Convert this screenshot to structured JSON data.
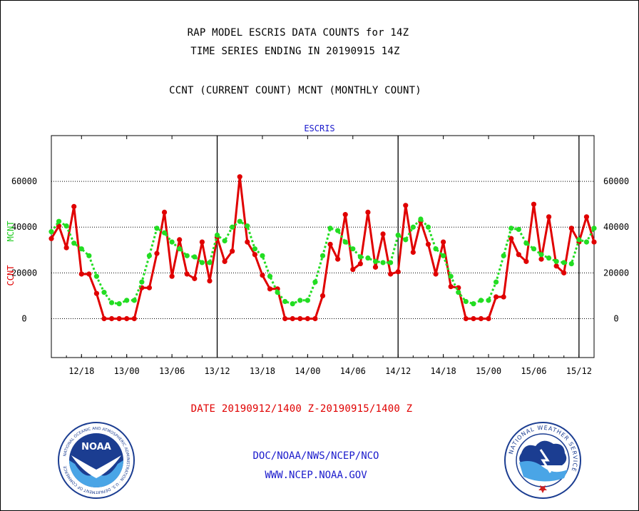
{
  "header": {
    "title_line1": "RAP MODEL ESCRIS DATA COUNTS for 14Z",
    "title_line2": "TIME SERIES ENDING IN 20190915 14Z",
    "title_line3": "CCNT (CURRENT COUNT) MCNT (MONTHLY COUNT)"
  },
  "footer": {
    "date_range": "DATE 20190912/1400 Z-20190915/1400 Z",
    "credit_line1": "DOC/NOAA/NWS/NCEP/NCO",
    "credit_line2": "WWW.NCEP.NOAA.GOV"
  },
  "logos": {
    "left": "noaa-logo",
    "left_text": "NOAA",
    "left_ring_text": "NATIONAL OCEANIC AND ATMOSPHERIC ADMINISTRATION · U.S. DEPARTMENT OF COMMERCE",
    "right": "national-weather-service-logo",
    "right_ring_text": "NATIONAL WEATHER SERVICE"
  },
  "chart_data": {
    "type": "line",
    "title": "ESCRIS",
    "ylabel_left": "CCNT",
    "ylabel_right": "MCNT",
    "ylim": [
      -17000,
      80000
    ],
    "yticks": [
      0,
      20000,
      40000,
      60000
    ],
    "ytick_labels": [
      "0",
      "20000",
      "40000",
      "60000"
    ],
    "grid": true,
    "x_range_hours": [
      0,
      72
    ],
    "x_start_label": "20190912/1400 Z",
    "x_ticks": [
      {
        "hour": 4,
        "label": "12/18"
      },
      {
        "hour": 10,
        "label": "13/00"
      },
      {
        "hour": 16,
        "label": "13/06"
      },
      {
        "hour": 22,
        "label": "13/12"
      },
      {
        "hour": 28,
        "label": "13/18"
      },
      {
        "hour": 34,
        "label": "14/00"
      },
      {
        "hour": 40,
        "label": "14/06"
      },
      {
        "hour": 46,
        "label": "14/12"
      },
      {
        "hour": 52,
        "label": "14/18"
      },
      {
        "hour": 58,
        "label": "15/00"
      },
      {
        "hour": 64,
        "label": "15/06"
      },
      {
        "hour": 70,
        "label": "15/12"
      }
    ],
    "day_dividers_hours": [
      22,
      46,
      70
    ],
    "series": [
      {
        "name": "CCNT",
        "color": "#e00000",
        "style": "solid",
        "x": [
          0,
          1,
          2,
          3,
          4,
          5,
          6,
          7,
          8,
          9,
          10,
          11,
          12,
          13,
          14,
          15,
          16,
          17,
          18,
          19,
          20,
          21,
          22,
          23,
          24,
          25,
          26,
          27,
          28,
          29,
          30,
          31,
          32,
          33,
          34,
          35,
          36,
          37,
          38,
          39,
          40,
          41,
          42,
          43,
          44,
          45,
          46,
          47,
          48,
          49,
          50,
          51,
          52,
          53,
          54,
          55,
          56,
          57,
          58,
          59,
          60,
          61,
          62,
          63,
          64,
          65,
          66,
          67,
          68,
          69,
          70,
          71,
          72
        ],
        "values": [
          35000,
          40500,
          31000,
          49000,
          19500,
          19500,
          11000,
          0,
          0,
          0,
          0,
          0,
          13500,
          13500,
          28500,
          46500,
          18500,
          34500,
          19500,
          17500,
          33500,
          16500,
          35500,
          25000,
          29500,
          62000,
          33500,
          28000,
          19000,
          13000,
          13000,
          0,
          0,
          0,
          0,
          0,
          10000,
          32500,
          26000,
          45500,
          21500,
          24000,
          46500,
          22500,
          37000,
          19500,
          20500,
          49500,
          29000,
          42500,
          32500,
          19500,
          33500,
          14000,
          13500,
          0,
          0,
          0,
          0,
          9500,
          9500,
          35000,
          28000,
          25000,
          50000,
          26000,
          44500,
          23000,
          20000,
          39500,
          33500,
          44500,
          33500
        ]
      },
      {
        "name": "MCNT",
        "color": "#22dd22",
        "style": "dotted",
        "x": [
          0,
          1,
          2,
          3,
          4,
          5,
          6,
          7,
          8,
          9,
          10,
          11,
          12,
          13,
          14,
          15,
          16,
          17,
          18,
          19,
          20,
          21,
          22,
          23,
          24,
          25,
          26,
          27,
          28,
          29,
          30,
          31,
          32,
          33,
          34,
          35,
          36,
          37,
          38,
          39,
          40,
          41,
          42,
          43,
          44,
          45,
          46,
          47,
          48,
          49,
          50,
          51,
          52,
          53,
          54,
          55,
          56,
          57,
          58,
          59,
          60,
          61,
          62,
          63,
          64,
          65,
          66,
          67,
          68,
          69,
          70,
          71,
          72
        ],
        "values": [
          38000,
          42500,
          40500,
          33000,
          30500,
          27500,
          18500,
          11500,
          7000,
          6500,
          8000,
          8000,
          16000,
          27500,
          39500,
          37500,
          33500,
          30500,
          27500,
          27000,
          24500,
          24500,
          36500,
          34000,
          40000,
          42500,
          40500,
          30500,
          27500,
          18500,
          11500,
          7500,
          6500,
          8000,
          8000,
          16000,
          27500,
          39500,
          38500,
          33500,
          30500,
          27000,
          26500,
          25000,
          24500,
          24500,
          36500,
          34500,
          40000,
          43500,
          40000,
          30500,
          27500,
          18500,
          11500,
          7500,
          6500,
          8000,
          8000,
          16000,
          27500,
          39500,
          39000,
          33000,
          30500,
          28000,
          26500,
          25000,
          24500,
          24000,
          34500,
          33500,
          39500
        ]
      }
    ]
  }
}
